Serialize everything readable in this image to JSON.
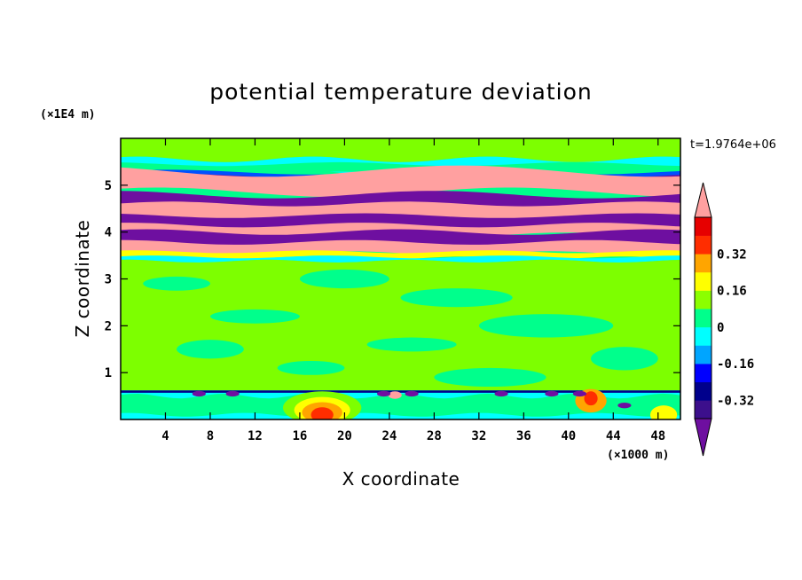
{
  "chart_data": {
    "type": "contour",
    "title": "potential temperature deviation",
    "xlabel": "X coordinate",
    "ylabel": "Z coordinate",
    "x_unit": "(×1000 m)",
    "y_unit": "(×1E4 m)",
    "time_label": "t=1.9764e+06",
    "xlim": [
      0,
      50
    ],
    "ylim": [
      0,
      6
    ],
    "x_ticks": [
      4,
      8,
      12,
      16,
      20,
      24,
      28,
      32,
      36,
      40,
      44,
      48
    ],
    "y_ticks": [
      1,
      2,
      3,
      4,
      5
    ],
    "colorbar": {
      "levels": [
        -0.4,
        -0.32,
        -0.24,
        -0.16,
        -0.08,
        0,
        0.08,
        0.16,
        0.24,
        0.32,
        0.4
      ],
      "labels": [
        "0.32",
        "0.16",
        "0",
        "-0.16",
        "-0.32"
      ],
      "label_values": [
        0.32,
        0.16,
        0,
        -0.16,
        -0.32
      ],
      "colors_low_to_high": [
        "#3c0f8c",
        "#00008c",
        "#0000ff",
        "#00a5ff",
        "#00ffff",
        "#00ff8c",
        "#8cff00",
        "#ffff00",
        "#ffa500",
        "#ff2d00",
        "#e60000"
      ],
      "under_color": "#6e0fa0",
      "over_color": "#ffa0a0"
    },
    "bands": [
      {
        "z_range": [
          0,
          0.6
        ],
        "dominant": "cyan-green with red cores near x≈18 and x≈42"
      },
      {
        "z_range": [
          0.6,
          3.4
        ],
        "dominant": "green"
      },
      {
        "z_range": [
          3.4,
          5.4
        ],
        "dominant": "alternating pink and purple layers"
      },
      {
        "z_range": [
          5.4,
          6
        ],
        "dominant": "green-cyan"
      }
    ]
  }
}
